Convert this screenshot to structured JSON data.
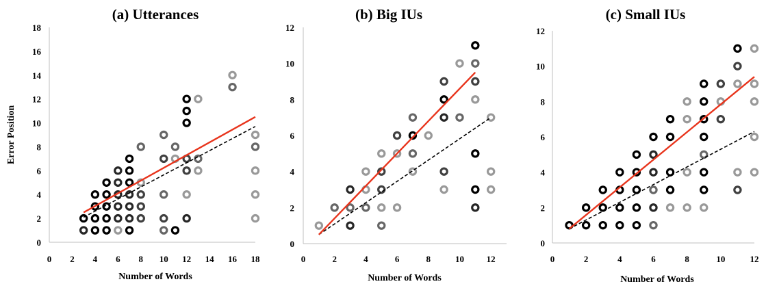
{
  "chart_data": [
    {
      "type": "scatter",
      "title": "(a) Utterances",
      "xlabel": "Number of Words",
      "ylabel": "Error Position",
      "xlim": [
        0,
        18
      ],
      "ylim": [
        0,
        18
      ],
      "xticks": [
        "0",
        "2",
        "4",
        "6",
        "8",
        "10",
        "12",
        "14",
        "16",
        "18"
      ],
      "yticks": [
        "0",
        "2",
        "4",
        "6",
        "8",
        "10",
        "12",
        "14",
        "16",
        "18"
      ],
      "grid": false,
      "trend_line": {
        "color": "#e8341c",
        "from": [
          3,
          2.5
        ],
        "to": [
          18,
          10.5
        ]
      },
      "reference_line": {
        "style": "dashed",
        "color": "#000000",
        "from": [
          3,
          2.1
        ],
        "to": [
          18,
          9.7
        ]
      },
      "points": [
        {
          "x": 3,
          "y": 1,
          "shade": "#262626"
        },
        {
          "x": 3,
          "y": 2,
          "shade": "#000000"
        },
        {
          "x": 4,
          "y": 1,
          "shade": "#000000"
        },
        {
          "x": 4,
          "y": 2,
          "shade": "#000000"
        },
        {
          "x": 4,
          "y": 3,
          "shade": "#000000"
        },
        {
          "x": 4,
          "y": 4,
          "shade": "#000000"
        },
        {
          "x": 5,
          "y": 1,
          "shade": "#000000"
        },
        {
          "x": 5,
          "y": 2,
          "shade": "#000000"
        },
        {
          "x": 5,
          "y": 3,
          "shade": "#000000"
        },
        {
          "x": 5,
          "y": 4,
          "shade": "#000000"
        },
        {
          "x": 5,
          "y": 5,
          "shade": "#000000"
        },
        {
          "x": 6,
          "y": 1,
          "shade": "#999999"
        },
        {
          "x": 6,
          "y": 2,
          "shade": "#262626"
        },
        {
          "x": 6,
          "y": 3,
          "shade": "#262626"
        },
        {
          "x": 6,
          "y": 4,
          "shade": "#262626"
        },
        {
          "x": 6,
          "y": 5,
          "shade": "#262626"
        },
        {
          "x": 6,
          "y": 6,
          "shade": "#262626"
        },
        {
          "x": 7,
          "y": 1,
          "shade": "#000000"
        },
        {
          "x": 7,
          "y": 2,
          "shade": "#262626"
        },
        {
          "x": 7,
          "y": 3,
          "shade": "#262626"
        },
        {
          "x": 7,
          "y": 4,
          "shade": "#262626"
        },
        {
          "x": 7,
          "y": 5,
          "shade": "#000000"
        },
        {
          "x": 7,
          "y": 6,
          "shade": "#000000"
        },
        {
          "x": 7,
          "y": 7,
          "shade": "#000000"
        },
        {
          "x": 8,
          "y": 2,
          "shade": "#404040"
        },
        {
          "x": 8,
          "y": 3,
          "shade": "#404040"
        },
        {
          "x": 8,
          "y": 4,
          "shade": "#404040"
        },
        {
          "x": 8,
          "y": 5,
          "shade": "#999999"
        },
        {
          "x": 8,
          "y": 8,
          "shade": "#666666"
        },
        {
          "x": 10,
          "y": 1,
          "shade": "#666666"
        },
        {
          "x": 10,
          "y": 2,
          "shade": "#404040"
        },
        {
          "x": 10,
          "y": 4,
          "shade": "#666666"
        },
        {
          "x": 10,
          "y": 7,
          "shade": "#404040"
        },
        {
          "x": 10,
          "y": 9,
          "shade": "#666666"
        },
        {
          "x": 11,
          "y": 1,
          "shade": "#000000"
        },
        {
          "x": 11,
          "y": 7,
          "shade": "#999999"
        },
        {
          "x": 11,
          "y": 8,
          "shade": "#666666"
        },
        {
          "x": 12,
          "y": 2,
          "shade": "#262626"
        },
        {
          "x": 12,
          "y": 4,
          "shade": "#999999"
        },
        {
          "x": 12,
          "y": 6,
          "shade": "#404040"
        },
        {
          "x": 12,
          "y": 7,
          "shade": "#404040"
        },
        {
          "x": 12,
          "y": 10,
          "shade": "#000000"
        },
        {
          "x": 12,
          "y": 11,
          "shade": "#000000"
        },
        {
          "x": 12,
          "y": 12,
          "shade": "#000000"
        },
        {
          "x": 13,
          "y": 6,
          "shade": "#999999"
        },
        {
          "x": 13,
          "y": 7,
          "shade": "#666666"
        },
        {
          "x": 13,
          "y": 12,
          "shade": "#999999"
        },
        {
          "x": 16,
          "y": 13,
          "shade": "#666666"
        },
        {
          "x": 16,
          "y": 14,
          "shade": "#999999"
        },
        {
          "x": 18,
          "y": 2,
          "shade": "#999999"
        },
        {
          "x": 18,
          "y": 4,
          "shade": "#999999"
        },
        {
          "x": 18,
          "y": 6,
          "shade": "#999999"
        },
        {
          "x": 18,
          "y": 8,
          "shade": "#666666"
        },
        {
          "x": 18,
          "y": 9,
          "shade": "#999999"
        }
      ]
    },
    {
      "type": "scatter",
      "title": "(b) Big IUs",
      "xlabel": "Number of Words",
      "ylabel": "",
      "xlim": [
        0,
        13
      ],
      "ylim": [
        0,
        12
      ],
      "xticks": [
        "0",
        "2",
        "4",
        "6",
        "8",
        "10",
        "12"
      ],
      "yticks": [
        "0",
        "2",
        "4",
        "6",
        "8",
        "10",
        "12"
      ],
      "grid": false,
      "trend_line": {
        "color": "#e8341c",
        "from": [
          1,
          0.5
        ],
        "to": [
          11,
          9.5
        ]
      },
      "reference_line": {
        "style": "dashed",
        "color": "#000000",
        "from": [
          1,
          0.5
        ],
        "to": [
          12,
          7
        ]
      },
      "points": [
        {
          "x": 1,
          "y": 1,
          "shade": "#999999"
        },
        {
          "x": 2,
          "y": 2,
          "shade": "#666666"
        },
        {
          "x": 3,
          "y": 1,
          "shade": "#262626"
        },
        {
          "x": 3,
          "y": 2,
          "shade": "#666666"
        },
        {
          "x": 3,
          "y": 3,
          "shade": "#262626"
        },
        {
          "x": 4,
          "y": 2,
          "shade": "#666666"
        },
        {
          "x": 4,
          "y": 3,
          "shade": "#999999"
        },
        {
          "x": 4,
          "y": 4,
          "shade": "#999999"
        },
        {
          "x": 5,
          "y": 1,
          "shade": "#666666"
        },
        {
          "x": 5,
          "y": 2,
          "shade": "#999999"
        },
        {
          "x": 5,
          "y": 3,
          "shade": "#404040"
        },
        {
          "x": 5,
          "y": 4,
          "shade": "#404040"
        },
        {
          "x": 5,
          "y": 5,
          "shade": "#999999"
        },
        {
          "x": 6,
          "y": 2,
          "shade": "#999999"
        },
        {
          "x": 6,
          "y": 5,
          "shade": "#999999"
        },
        {
          "x": 6,
          "y": 6,
          "shade": "#404040"
        },
        {
          "x": 7,
          "y": 4,
          "shade": "#999999"
        },
        {
          "x": 7,
          "y": 5,
          "shade": "#666666"
        },
        {
          "x": 7,
          "y": 6,
          "shade": "#000000"
        },
        {
          "x": 7,
          "y": 7,
          "shade": "#666666"
        },
        {
          "x": 8,
          "y": 6,
          "shade": "#999999"
        },
        {
          "x": 9,
          "y": 3,
          "shade": "#999999"
        },
        {
          "x": 9,
          "y": 4,
          "shade": "#404040"
        },
        {
          "x": 9,
          "y": 7,
          "shade": "#262626"
        },
        {
          "x": 9,
          "y": 8,
          "shade": "#000000"
        },
        {
          "x": 9,
          "y": 9,
          "shade": "#404040"
        },
        {
          "x": 10,
          "y": 7,
          "shade": "#666666"
        },
        {
          "x": 10,
          "y": 10,
          "shade": "#999999"
        },
        {
          "x": 11,
          "y": 2,
          "shade": "#262626"
        },
        {
          "x": 11,
          "y": 3,
          "shade": "#000000"
        },
        {
          "x": 11,
          "y": 5,
          "shade": "#000000"
        },
        {
          "x": 11,
          "y": 8,
          "shade": "#999999"
        },
        {
          "x": 11,
          "y": 9,
          "shade": "#404040"
        },
        {
          "x": 11,
          "y": 10,
          "shade": "#666666"
        },
        {
          "x": 11,
          "y": 11,
          "shade": "#000000"
        },
        {
          "x": 12,
          "y": 3,
          "shade": "#999999"
        },
        {
          "x": 12,
          "y": 4,
          "shade": "#999999"
        },
        {
          "x": 12,
          "y": 7,
          "shade": "#999999"
        }
      ]
    },
    {
      "type": "scatter",
      "title": "(c) Small IUs",
      "xlabel": "Number of Words",
      "ylabel": "",
      "xlim": [
        0,
        12
      ],
      "ylim": [
        0,
        12
      ],
      "xticks": [
        "0",
        "2",
        "4",
        "6",
        "8",
        "10",
        "12"
      ],
      "yticks": [
        "0",
        "2",
        "4",
        "6",
        "8",
        "10",
        "12"
      ],
      "grid": false,
      "trend_line": {
        "color": "#e8341c",
        "from": [
          1,
          0.8
        ],
        "to": [
          12,
          9.4
        ]
      },
      "reference_line": {
        "style": "dashed",
        "color": "#000000",
        "from": [
          1,
          0.8
        ],
        "to": [
          12,
          6.3
        ]
      },
      "points": [
        {
          "x": 1,
          "y": 1,
          "shade": "#000000"
        },
        {
          "x": 2,
          "y": 1,
          "shade": "#000000"
        },
        {
          "x": 2,
          "y": 2,
          "shade": "#000000"
        },
        {
          "x": 3,
          "y": 1,
          "shade": "#000000"
        },
        {
          "x": 3,
          "y": 2,
          "shade": "#000000"
        },
        {
          "x": 3,
          "y": 3,
          "shade": "#000000"
        },
        {
          "x": 4,
          "y": 1,
          "shade": "#000000"
        },
        {
          "x": 4,
          "y": 2,
          "shade": "#000000"
        },
        {
          "x": 4,
          "y": 3,
          "shade": "#000000"
        },
        {
          "x": 4,
          "y": 4,
          "shade": "#000000"
        },
        {
          "x": 5,
          "y": 1,
          "shade": "#000000"
        },
        {
          "x": 5,
          "y": 2,
          "shade": "#000000"
        },
        {
          "x": 5,
          "y": 3,
          "shade": "#000000"
        },
        {
          "x": 5,
          "y": 4,
          "shade": "#000000"
        },
        {
          "x": 5,
          "y": 5,
          "shade": "#000000"
        },
        {
          "x": 6,
          "y": 1,
          "shade": "#666666"
        },
        {
          "x": 6,
          "y": 2,
          "shade": "#262626"
        },
        {
          "x": 6,
          "y": 3,
          "shade": "#666666"
        },
        {
          "x": 6,
          "y": 4,
          "shade": "#262626"
        },
        {
          "x": 6,
          "y": 5,
          "shade": "#262626"
        },
        {
          "x": 6,
          "y": 6,
          "shade": "#000000"
        },
        {
          "x": 7,
          "y": 2,
          "shade": "#999999"
        },
        {
          "x": 7,
          "y": 3,
          "shade": "#000000"
        },
        {
          "x": 7,
          "y": 4,
          "shade": "#000000"
        },
        {
          "x": 7,
          "y": 6,
          "shade": "#000000"
        },
        {
          "x": 7,
          "y": 7,
          "shade": "#000000"
        },
        {
          "x": 8,
          "y": 2,
          "shade": "#999999"
        },
        {
          "x": 8,
          "y": 4,
          "shade": "#999999"
        },
        {
          "x": 8,
          "y": 7,
          "shade": "#999999"
        },
        {
          "x": 8,
          "y": 8,
          "shade": "#999999"
        },
        {
          "x": 9,
          "y": 2,
          "shade": "#999999"
        },
        {
          "x": 9,
          "y": 3,
          "shade": "#000000"
        },
        {
          "x": 9,
          "y": 4,
          "shade": "#000000"
        },
        {
          "x": 9,
          "y": 5,
          "shade": "#666666"
        },
        {
          "x": 9,
          "y": 6,
          "shade": "#000000"
        },
        {
          "x": 9,
          "y": 7,
          "shade": "#000000"
        },
        {
          "x": 9,
          "y": 8,
          "shade": "#000000"
        },
        {
          "x": 9,
          "y": 9,
          "shade": "#000000"
        },
        {
          "x": 10,
          "y": 7,
          "shade": "#404040"
        },
        {
          "x": 10,
          "y": 8,
          "shade": "#999999"
        },
        {
          "x": 10,
          "y": 9,
          "shade": "#404040"
        },
        {
          "x": 11,
          "y": 3,
          "shade": "#404040"
        },
        {
          "x": 11,
          "y": 4,
          "shade": "#999999"
        },
        {
          "x": 11,
          "y": 9,
          "shade": "#999999"
        },
        {
          "x": 11,
          "y": 10,
          "shade": "#404040"
        },
        {
          "x": 11,
          "y": 11,
          "shade": "#000000"
        },
        {
          "x": 12,
          "y": 4,
          "shade": "#999999"
        },
        {
          "x": 12,
          "y": 6,
          "shade": "#999999"
        },
        {
          "x": 12,
          "y": 8,
          "shade": "#999999"
        },
        {
          "x": 12,
          "y": 9,
          "shade": "#999999"
        },
        {
          "x": 12,
          "y": 11,
          "shade": "#999999"
        }
      ]
    }
  ]
}
